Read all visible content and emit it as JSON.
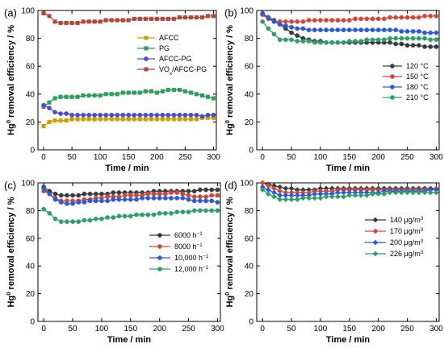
{
  "figure": {
    "background": "#ffffff"
  },
  "chart_data": [
    {
      "panel": "(a)",
      "type": "line",
      "xlabel": "Time / min",
      "ylabel": "Hg0 removal efficiency / %",
      "xlim": [
        -10,
        305
      ],
      "ylim": [
        0,
        100
      ],
      "xticks": [
        0,
        50,
        100,
        150,
        200,
        250,
        300
      ],
      "yticks": [
        0,
        20,
        40,
        60,
        80,
        100
      ],
      "legend_position": "top-center",
      "x": [
        0,
        10,
        20,
        30,
        40,
        50,
        60,
        70,
        80,
        90,
        100,
        110,
        120,
        130,
        140,
        150,
        160,
        170,
        180,
        190,
        200,
        210,
        220,
        230,
        240,
        250,
        260,
        270,
        280,
        290,
        300
      ],
      "series": [
        {
          "name": "AFCC",
          "marker": "square",
          "color": "#c8a000",
          "values": [
            17,
            20,
            21,
            21,
            21,
            22,
            22,
            22,
            22,
            22,
            22,
            22,
            22,
            22,
            22,
            22,
            22,
            22,
            22,
            22,
            22,
            22,
            22,
            22,
            22,
            22,
            22,
            22,
            23,
            23,
            23
          ]
        },
        {
          "name": "PG",
          "marker": "square",
          "color": "#2e9e5a",
          "values": [
            31,
            34,
            37,
            38,
            38,
            38,
            38,
            39,
            39,
            39,
            39,
            40,
            40,
            40,
            41,
            41,
            41,
            41,
            42,
            42,
            41,
            42,
            43,
            43,
            43,
            42,
            41,
            40,
            39,
            38,
            37
          ]
        },
        {
          "name": "AFCC-PG",
          "marker": "circle",
          "color": "#4a4ad8",
          "values": [
            32,
            30,
            27,
            26,
            26,
            25,
            25,
            25,
            25,
            25,
            25,
            25,
            25,
            25,
            25,
            25,
            25,
            25,
            25,
            25,
            25,
            25,
            25,
            25,
            25,
            25,
            25,
            25,
            24,
            25,
            25
          ]
        },
        {
          "name": "VOx/AFCC-PG",
          "marker": "square",
          "color": "#b0483a",
          "values": [
            98,
            96,
            92,
            91,
            91,
            91,
            91,
            92,
            92,
            92,
            92,
            93,
            93,
            93,
            93,
            93,
            94,
            94,
            94,
            94,
            94,
            94,
            94,
            94,
            95,
            95,
            95,
            95,
            95,
            96,
            96
          ]
        }
      ]
    },
    {
      "panel": "(b)",
      "type": "line",
      "xlabel": "Time / min",
      "ylabel": "Hg0 removal efficiency / %",
      "xlim": [
        -10,
        305
      ],
      "ylim": [
        0,
        100
      ],
      "xticks": [
        0,
        50,
        100,
        150,
        200,
        250,
        300
      ],
      "yticks": [
        0,
        20,
        40,
        60,
        80,
        100
      ],
      "legend_position": "center-right",
      "x": [
        0,
        10,
        20,
        30,
        40,
        50,
        60,
        70,
        80,
        90,
        100,
        110,
        120,
        130,
        140,
        150,
        160,
        170,
        180,
        190,
        200,
        210,
        220,
        230,
        240,
        250,
        260,
        270,
        280,
        290,
        300
      ],
      "series": [
        {
          "name": "120 °C",
          "marker": "circle",
          "color": "#3a3a3a",
          "values": [
            97,
            95,
            93,
            90,
            87,
            84,
            82,
            80,
            79,
            78,
            78,
            77,
            77,
            77,
            77,
            77,
            77,
            77,
            77,
            77,
            77,
            77,
            77,
            76,
            76,
            75,
            75,
            75,
            74,
            74,
            74
          ]
        },
        {
          "name": "150 °C",
          "marker": "circle",
          "color": "#d0483a",
          "values": [
            97,
            94,
            92,
            92,
            92,
            92,
            92,
            92,
            93,
            93,
            93,
            93,
            93,
            93,
            93,
            93,
            94,
            94,
            94,
            94,
            94,
            94,
            95,
            95,
            95,
            95,
            95,
            95,
            96,
            96,
            96
          ]
        },
        {
          "name": "180 °C",
          "marker": "circle",
          "color": "#2a5ae0",
          "values": [
            98,
            95,
            92,
            90,
            89,
            88,
            87,
            87,
            86,
            86,
            86,
            86,
            86,
            86,
            86,
            86,
            86,
            86,
            86,
            86,
            86,
            86,
            86,
            86,
            85,
            85,
            85,
            85,
            84,
            84,
            84
          ]
        },
        {
          "name": "210 °C",
          "marker": "circle",
          "color": "#2e9e6a",
          "values": [
            92,
            87,
            83,
            79,
            79,
            79,
            78,
            78,
            78,
            77,
            77,
            77,
            77,
            77,
            77,
            78,
            78,
            78,
            79,
            79,
            79,
            79,
            80,
            80,
            80,
            80,
            80,
            80,
            80,
            79,
            79
          ]
        }
      ]
    },
    {
      "panel": "(c)",
      "type": "line",
      "xlabel": "Time / min",
      "ylabel": "Hg0 removal efficiency / %",
      "xlim": [
        -10,
        305
      ],
      "ylim": [
        0,
        100
      ],
      "xticks": [
        0,
        50,
        100,
        150,
        200,
        250,
        300
      ],
      "yticks": [
        0,
        20,
        40,
        60,
        80,
        100
      ],
      "legend_position": "center-right",
      "x": [
        0,
        10,
        20,
        30,
        40,
        50,
        60,
        70,
        80,
        90,
        100,
        110,
        120,
        130,
        140,
        150,
        160,
        170,
        180,
        190,
        200,
        210,
        220,
        230,
        240,
        250,
        260,
        270,
        280,
        290,
        300
      ],
      "series": [
        {
          "name": "6000 h-1",
          "marker": "circle",
          "color": "#3a3a3a",
          "values": [
            97,
            94,
            92,
            91,
            91,
            91,
            91,
            92,
            92,
            92,
            92,
            92,
            93,
            93,
            93,
            93,
            93,
            93,
            93,
            94,
            94,
            94,
            94,
            94,
            94,
            94,
            94,
            95,
            95,
            95,
            95
          ]
        },
        {
          "name": "8000 h-1",
          "marker": "circle",
          "color": "#d0483a",
          "values": [
            94,
            92,
            89,
            87,
            87,
            87,
            87,
            88,
            88,
            89,
            89,
            90,
            90,
            90,
            91,
            91,
            91,
            91,
            92,
            92,
            92,
            92,
            93,
            93,
            92,
            91,
            90,
            90,
            90,
            91,
            91
          ]
        },
        {
          "name": "10,000 h-1",
          "marker": "circle",
          "color": "#2a5ae0",
          "values": [
            96,
            92,
            88,
            86,
            85,
            85,
            86,
            86,
            87,
            87,
            87,
            87,
            88,
            88,
            88,
            88,
            88,
            89,
            89,
            89,
            89,
            89,
            89,
            89,
            89,
            88,
            87,
            87,
            87,
            87,
            86
          ]
        },
        {
          "name": "12,000 h-1",
          "marker": "circle",
          "color": "#2e9e6a",
          "values": [
            81,
            78,
            74,
            72,
            72,
            72,
            72,
            73,
            73,
            74,
            74,
            75,
            75,
            76,
            76,
            76,
            77,
            77,
            77,
            77,
            78,
            78,
            78,
            79,
            79,
            79,
            80,
            80,
            80,
            80,
            80
          ]
        }
      ]
    },
    {
      "panel": "(d)",
      "type": "line",
      "xlabel": "Time / min",
      "ylabel": "Hg0 removal efficiency / %",
      "xlim": [
        -10,
        305
      ],
      "ylim": [
        0,
        100
      ],
      "xticks": [
        0,
        50,
        100,
        150,
        200,
        250,
        300
      ],
      "yticks": [
        0,
        20,
        40,
        60,
        80,
        100
      ],
      "legend_position": "center-right",
      "x": [
        0,
        10,
        20,
        30,
        40,
        50,
        60,
        70,
        80,
        90,
        100,
        110,
        120,
        130,
        140,
        150,
        160,
        170,
        180,
        190,
        200,
        210,
        220,
        230,
        240,
        250,
        260,
        270,
        280,
        290,
        300
      ],
      "series": [
        {
          "name": "140 μg/m3",
          "marker": "diamond",
          "color": "#3a3a3a",
          "values": [
            100,
            99,
            98,
            97,
            96,
            96,
            95,
            95,
            95,
            95,
            96,
            96,
            96,
            96,
            96,
            96,
            96,
            96,
            96,
            96,
            96,
            96,
            96,
            96,
            96,
            96,
            96,
            96,
            96,
            96,
            96
          ]
        },
        {
          "name": "170 μg/m3",
          "marker": "diamond",
          "color": "#d0483a",
          "values": [
            100,
            98,
            96,
            94,
            93,
            93,
            93,
            93,
            93,
            94,
            94,
            94,
            94,
            95,
            95,
            95,
            95,
            95,
            95,
            95,
            95,
            95,
            95,
            95,
            95,
            95,
            95,
            95,
            95,
            95,
            96
          ]
        },
        {
          "name": "200 μg/m3",
          "marker": "diamond",
          "color": "#2a5ae0",
          "values": [
            97,
            95,
            93,
            91,
            91,
            91,
            91,
            91,
            91,
            92,
            92,
            92,
            92,
            93,
            93,
            93,
            93,
            93,
            93,
            93,
            93,
            94,
            94,
            94,
            94,
            94,
            94,
            94,
            94,
            95,
            95
          ]
        },
        {
          "name": "226 μg/m3",
          "marker": "diamond",
          "color": "#2e9e6a",
          "values": [
            95,
            92,
            90,
            88,
            88,
            88,
            88,
            89,
            89,
            89,
            89,
            90,
            90,
            90,
            90,
            91,
            91,
            91,
            91,
            92,
            92,
            92,
            93,
            93,
            93,
            93,
            93,
            93,
            93,
            93,
            93
          ]
        }
      ]
    }
  ]
}
